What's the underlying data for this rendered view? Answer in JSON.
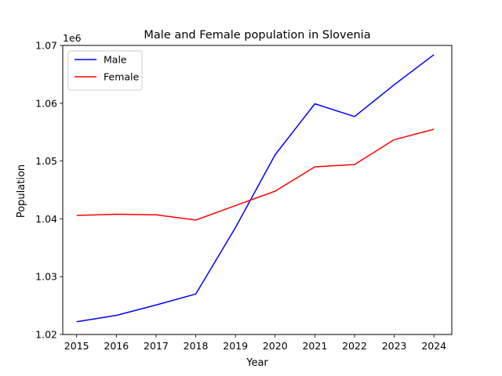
{
  "chart_data": {
    "type": "line",
    "title": "Male and Female population in Slovenia",
    "xlabel": "Year",
    "ylabel": "Population",
    "y_offset_label": "1e6",
    "x": [
      2015,
      2016,
      2017,
      2018,
      2019,
      2020,
      2021,
      2022,
      2023,
      2024
    ],
    "x_tick_labels": [
      "2015",
      "2016",
      "2017",
      "2018",
      "2019",
      "2020",
      "2021",
      "2022",
      "2023",
      "2024"
    ],
    "y_ticks": [
      1020000,
      1030000,
      1040000,
      1050000,
      1060000,
      1070000
    ],
    "y_tick_labels": [
      "1.02",
      "1.03",
      "1.04",
      "1.05",
      "1.06",
      "1.07"
    ],
    "ylim": [
      1020000,
      1070000
    ],
    "xlim": [
      2014.65,
      2024.45
    ],
    "grid": false,
    "legend_position": "top-left",
    "series": [
      {
        "name": "Male",
        "color": "#0000ff",
        "values": [
          1022200,
          1023300,
          1025100,
          1027000,
          1038500,
          1051100,
          1059900,
          1057700,
          1063200,
          1068400
        ]
      },
      {
        "name": "Female",
        "color": "#ff0000",
        "values": [
          1040600,
          1040800,
          1040700,
          1039800,
          1042300,
          1044800,
          1049000,
          1049400,
          1053700,
          1055500
        ]
      }
    ]
  }
}
